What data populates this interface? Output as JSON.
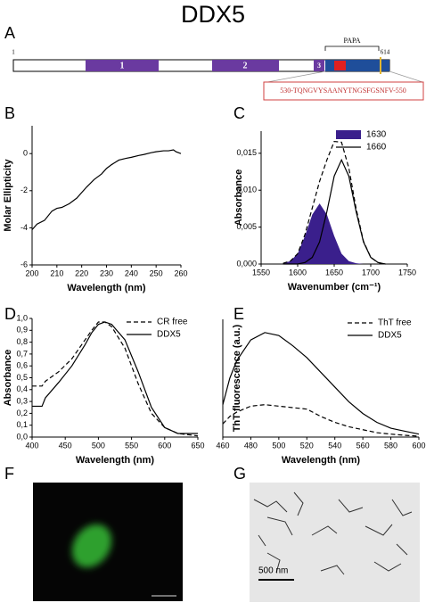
{
  "title": "DDX5",
  "panel_labels": [
    "A",
    "B",
    "C",
    "D",
    "E",
    "F",
    "G"
  ],
  "domain_map": {
    "start": "1",
    "end": "614",
    "domains": [
      "1",
      "2",
      "3"
    ],
    "region": "PAPA",
    "sequence": "530-TQNGVYSAANYTNGSFGSNFV-550"
  },
  "scale_bar": "500 nm",
  "chart_data": [
    {
      "type": "line",
      "xlabel": "Wavelength (nm)",
      "ylabel": "Molar Ellipticity",
      "x": [
        200,
        202,
        205,
        208,
        210,
        212,
        215,
        218,
        220,
        222,
        225,
        228,
        230,
        232,
        235,
        238,
        240,
        243,
        245,
        248,
        250,
        253,
        255,
        257,
        258,
        260
      ],
      "series": [
        {
          "color": "#000000",
          "style": "solid",
          "values": [
            -4.1,
            -3.8,
            -3.6,
            -3.1,
            -2.95,
            -2.9,
            -2.7,
            -2.4,
            -2.1,
            -1.8,
            -1.4,
            -1.1,
            -0.8,
            -0.6,
            -0.35,
            -0.25,
            -0.2,
            -0.1,
            -0.05,
            0.05,
            0.1,
            0.15,
            0.15,
            0.2,
            0.1,
            0.0
          ]
        }
      ],
      "xlim": [
        200,
        260
      ],
      "ylim": [
        -6,
        1.5
      ],
      "xticks": [
        200,
        210,
        220,
        230,
        240,
        250,
        260
      ],
      "yticks": [
        -6,
        -4,
        -2,
        0
      ]
    },
    {
      "type": "line",
      "xlabel": "Wavenumber (cm⁻¹)",
      "ylabel": "Absorbance",
      "x": [
        1580,
        1590,
        1600,
        1610,
        1620,
        1630,
        1640,
        1650,
        1660,
        1670,
        1680,
        1690,
        1700,
        1710,
        1720
      ],
      "series": [
        {
          "name": "1630",
          "color": "#3a1f8c",
          "style": "filled",
          "values": [
            0.0001,
            0.0004,
            0.0014,
            0.0038,
            0.0067,
            0.0082,
            0.0067,
            0.0038,
            0.0014,
            0.0004,
            0.0001,
            0,
            0,
            0,
            0
          ]
        },
        {
          "name": "1660",
          "color": "#000000",
          "style": "solid",
          "values": [
            0,
            0,
            0,
            0.0002,
            0.0009,
            0.003,
            0.0071,
            0.0119,
            0.0141,
            0.0119,
            0.0071,
            0.003,
            0.0009,
            0.0002,
            0
          ]
        },
        {
          "color": "#000000",
          "style": "dashed",
          "values": [
            0.0001,
            0.0004,
            0.0014,
            0.004,
            0.0076,
            0.0112,
            0.0141,
            0.0166,
            0.0165,
            0.013,
            0.0075,
            0.0031,
            0.0009,
            0.0002,
            0
          ]
        }
      ],
      "xlim": [
        1550,
        1750
      ],
      "ylim": [
        0,
        0.018
      ],
      "xticks": [
        1550,
        1600,
        1650,
        1700,
        1750
      ],
      "yticks": [
        {
          "value": 0,
          "label": "0,000"
        },
        {
          "value": 0.005,
          "label": "0,005"
        },
        {
          "value": 0.01,
          "label": "0,010"
        },
        {
          "value": 0.015,
          "label": "0,015"
        }
      ],
      "legend": "upper right"
    },
    {
      "type": "line",
      "xlabel": "Wavelength (nm)",
      "ylabel": "Absorbance",
      "x": [
        400,
        415,
        420,
        440,
        460,
        480,
        490,
        500,
        510,
        520,
        540,
        560,
        580,
        600,
        620,
        650
      ],
      "series": [
        {
          "name": "CR free",
          "color": "#000000",
          "style": "dashed",
          "values": [
            0.43,
            0.43,
            0.47,
            0.55,
            0.66,
            0.82,
            0.9,
            0.97,
            0.97,
            0.93,
            0.75,
            0.45,
            0.2,
            0.08,
            0.03,
            0.01
          ]
        },
        {
          "name": "DDX5",
          "color": "#000000",
          "style": "solid",
          "values": [
            0.26,
            0.26,
            0.33,
            0.46,
            0.6,
            0.78,
            0.88,
            0.95,
            0.97,
            0.95,
            0.82,
            0.55,
            0.25,
            0.08,
            0.03,
            0.03
          ]
        }
      ],
      "xlim": [
        400,
        650
      ],
      "ylim": [
        0,
        1.0
      ],
      "xticks": [
        400,
        450,
        500,
        550,
        600,
        650
      ],
      "yticks": [
        {
          "value": 0,
          "label": "0,0"
        },
        {
          "value": 0.1,
          "label": "0,1"
        },
        {
          "value": 0.2,
          "label": "0,2"
        },
        {
          "value": 0.3,
          "label": "0,3"
        },
        {
          "value": 0.4,
          "label": "0,4"
        },
        {
          "value": 0.5,
          "label": "0,5"
        },
        {
          "value": 0.6,
          "label": "0,6"
        },
        {
          "value": 0.7,
          "label": "0,7"
        },
        {
          "value": 0.8,
          "label": "0,8"
        },
        {
          "value": 0.9,
          "label": "0,9"
        },
        {
          "value": 1.0,
          "label": "1,0"
        }
      ],
      "legend": "upper right"
    },
    {
      "type": "line",
      "xlabel": "Wavelength (nm)",
      "ylabel": "ThT fluorescence (a.u.)",
      "x": [
        460,
        465,
        470,
        480,
        490,
        500,
        510,
        520,
        530,
        540,
        550,
        560,
        570,
        580,
        590,
        600
      ],
      "series": [
        {
          "name": "ThT free",
          "color": "#000000",
          "style": "dashed",
          "values": [
            4.5,
            7,
            8.5,
            10.5,
            11,
            10.5,
            10,
            9.5,
            7,
            5,
            3.5,
            2.5,
            1.5,
            1,
            0.6,
            0.3
          ]
        },
        {
          "name": "DDX5",
          "color": "#000000",
          "style": "solid",
          "values": [
            11,
            20,
            26,
            33,
            35.5,
            34.5,
            31,
            27,
            22,
            17,
            12,
            8,
            5,
            3,
            2,
            1
          ]
        }
      ],
      "xlim": [
        460,
        600
      ],
      "ylim": [
        0,
        40
      ],
      "xticks": [
        460,
        480,
        500,
        520,
        540,
        560,
        580,
        600
      ],
      "legend": "upper right"
    }
  ]
}
